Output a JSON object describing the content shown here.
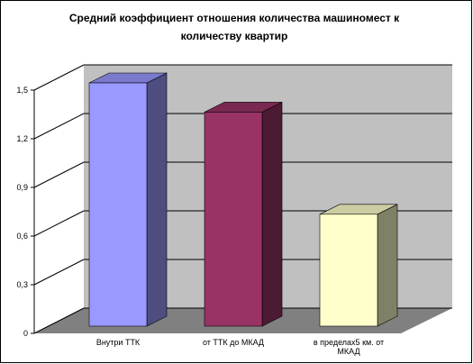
{
  "chart_data": {
    "type": "bar3d",
    "title": "Средний коэффициент отношения количества машиномест к количеству квартир",
    "categories": [
      "Внутри ТТК",
      "от ТТК до МКАД",
      "в пределах5 км. от МКАД"
    ],
    "values": [
      1.5,
      1.32,
      0.69
    ],
    "colors": [
      "#9999ff",
      "#993366",
      "#ffffcc"
    ],
    "ylim": [
      0,
      1.5
    ],
    "yticks": [
      0,
      {
        "value": 0.3,
        "label": "0,3"
      },
      {
        "value": 0.6,
        "label": "0,6"
      },
      {
        "value": 0.9,
        "label": "0,9"
      },
      {
        "value": 1.2,
        "label": "1,2"
      },
      {
        "value": 1.5,
        "label": "1,5"
      }
    ],
    "grid": true
  }
}
